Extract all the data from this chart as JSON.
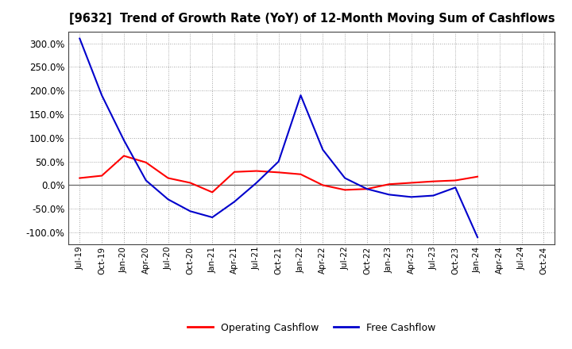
{
  "title": "[9632]  Trend of Growth Rate (YoY) of 12-Month Moving Sum of Cashflows",
  "x_labels": [
    "Jul-19",
    "Oct-19",
    "Jan-20",
    "Apr-20",
    "Jul-20",
    "Oct-20",
    "Jan-21",
    "Apr-21",
    "Jul-21",
    "Oct-21",
    "Jan-22",
    "Apr-22",
    "Jul-22",
    "Oct-22",
    "Jan-23",
    "Apr-23",
    "Jul-23",
    "Oct-23",
    "Jan-24",
    "Apr-24",
    "Jul-24",
    "Oct-24"
  ],
  "operating_cashflow": [
    15,
    20,
    62,
    48,
    15,
    5,
    -15,
    28,
    30,
    27,
    23,
    0,
    -10,
    -8,
    2,
    5,
    8,
    10,
    18,
    null,
    null,
    null
  ],
  "free_cashflow": [
    310,
    190,
    95,
    10,
    -30,
    -55,
    -68,
    -35,
    5,
    50,
    190,
    75,
    15,
    -8,
    -20,
    -25,
    -22,
    -5,
    -110,
    null,
    null,
    null
  ],
  "operating_color": "#ff0000",
  "free_color": "#0000cc",
  "background_color": "#ffffff",
  "ylim": [
    -125,
    325
  ],
  "yticks": [
    -100,
    -50,
    0,
    50,
    100,
    150,
    200,
    250,
    300
  ],
  "legend_labels": [
    "Operating Cashflow",
    "Free Cashflow"
  ]
}
